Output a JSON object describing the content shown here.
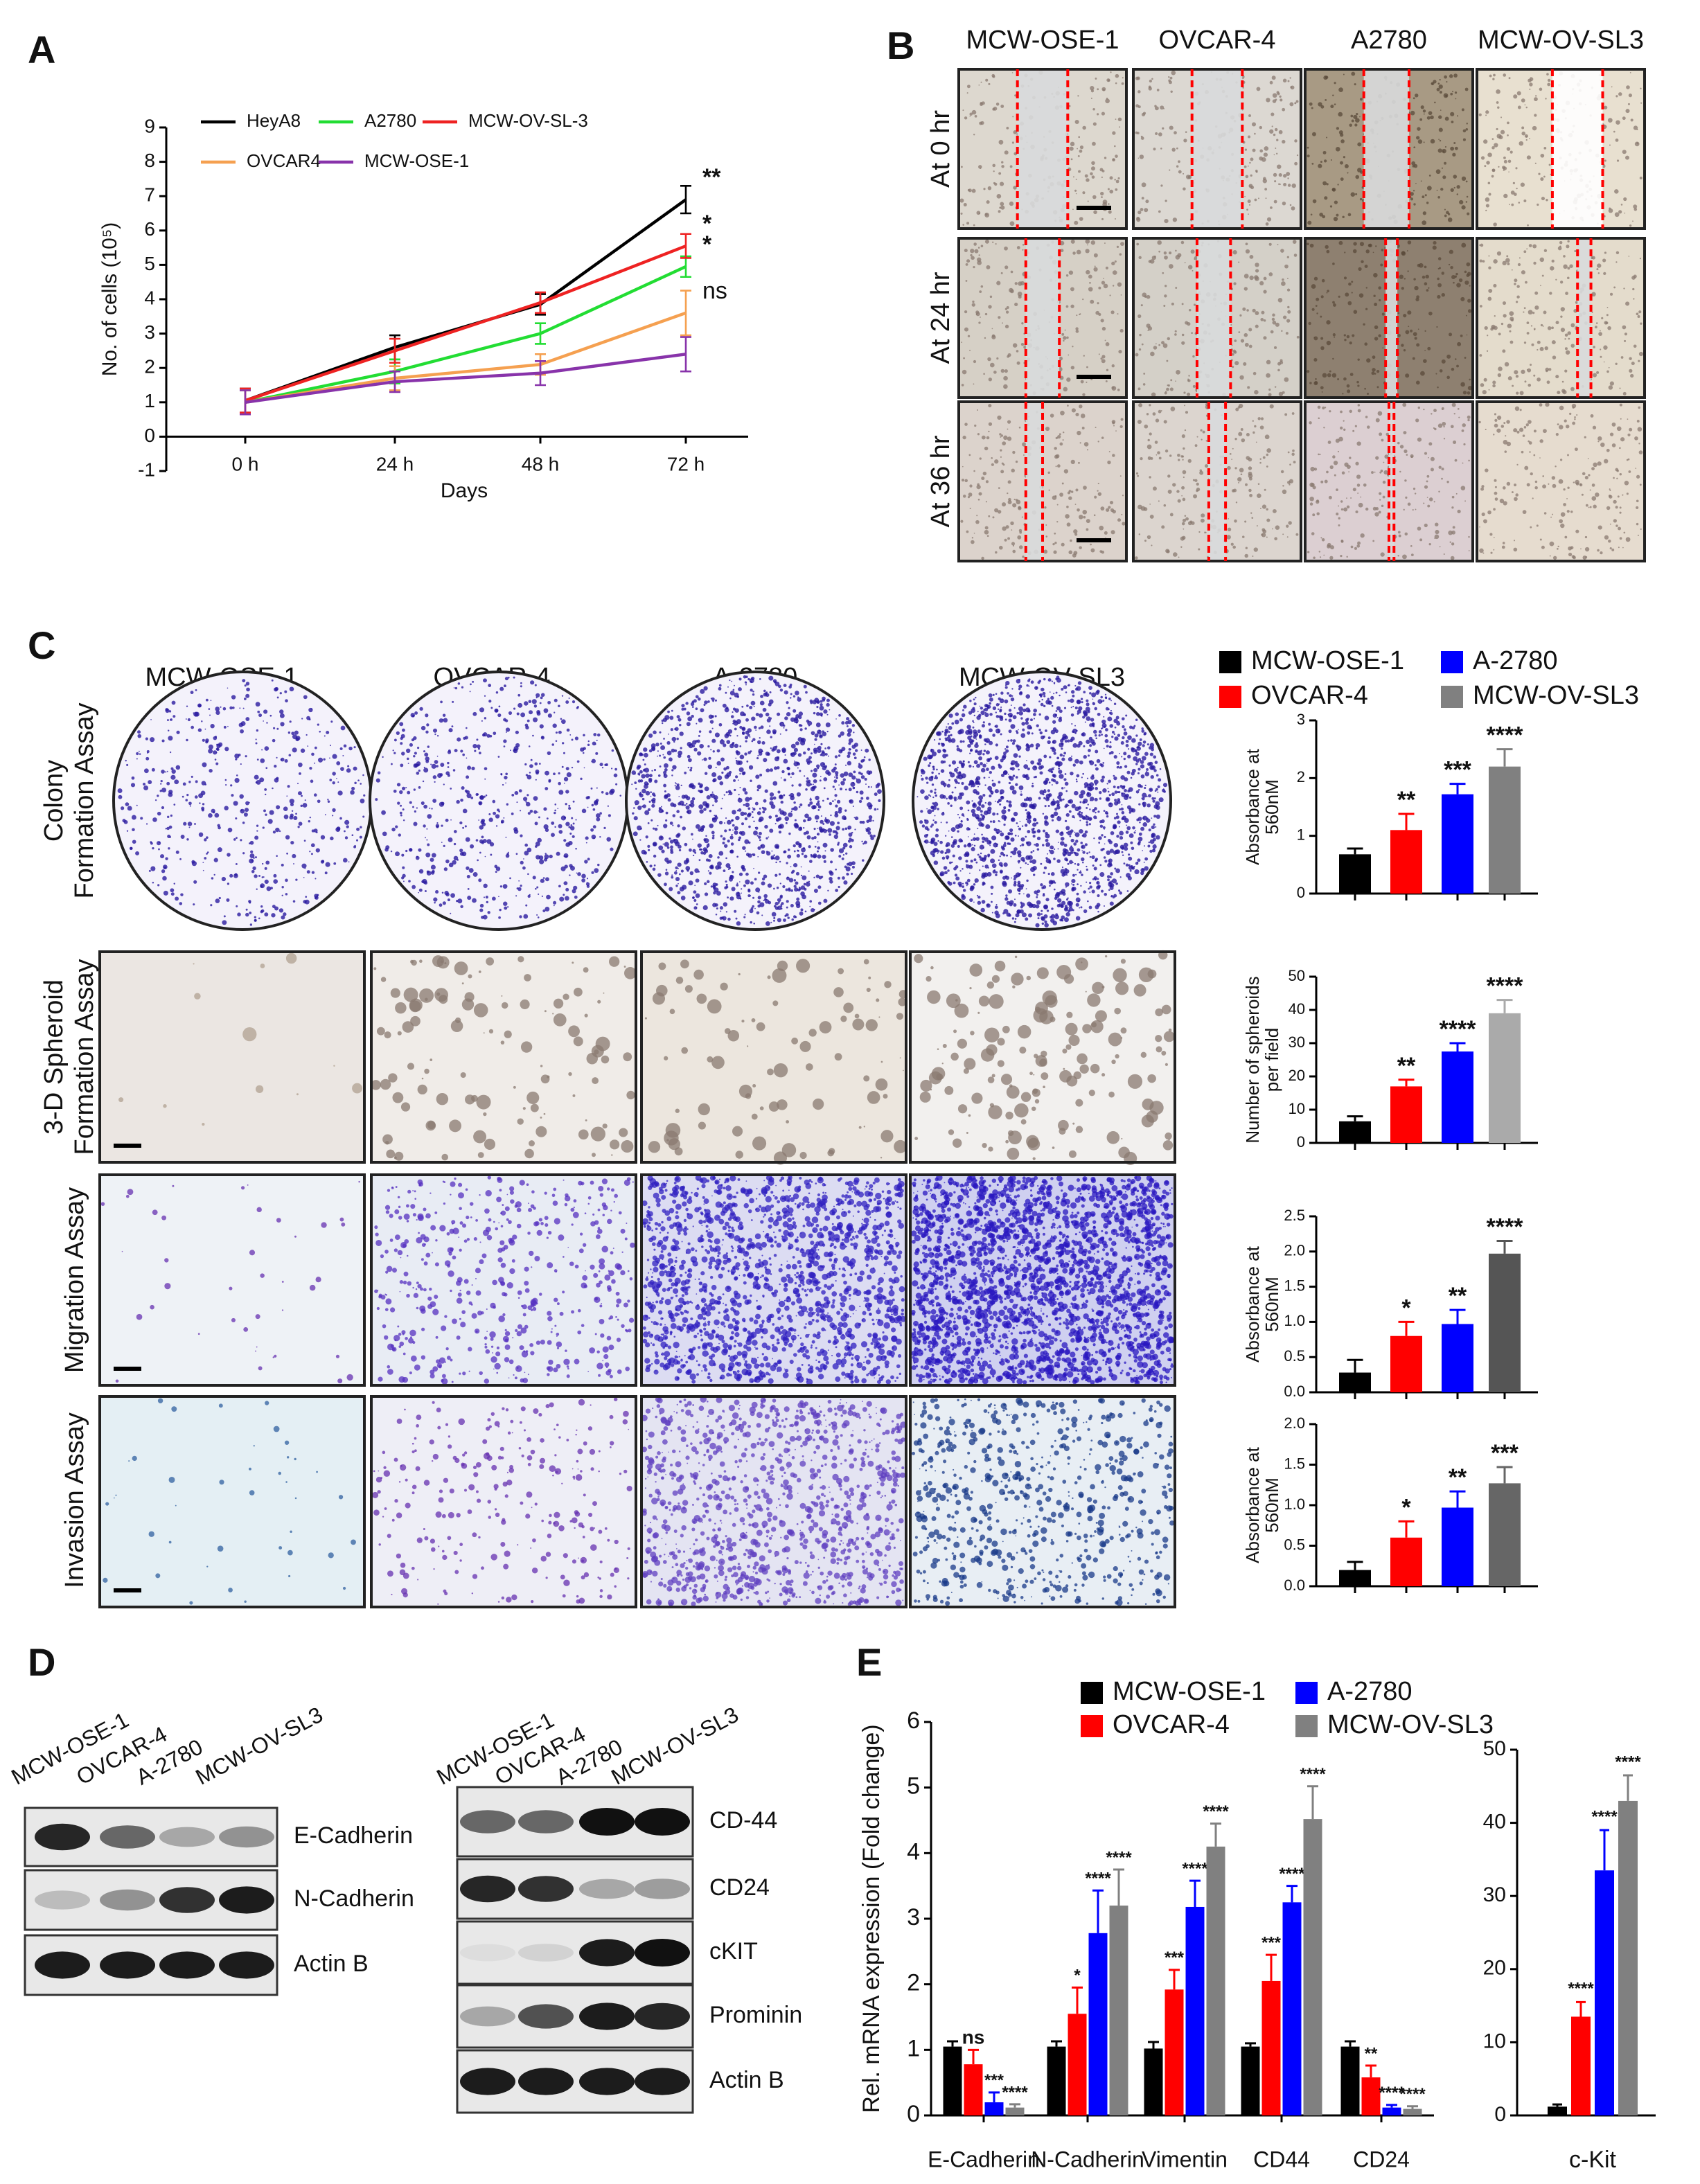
{
  "panels": [
    "A",
    "B",
    "C",
    "D",
    "E"
  ],
  "panel_b": {
    "columns": [
      "MCW-OSE-1",
      "OVCAR-4",
      "A2780",
      "MCW-OV-SL3"
    ],
    "rows": [
      "At 0 hr",
      "At 24 hr",
      "At 36 hr"
    ]
  },
  "panel_c": {
    "columns": [
      "MCW-OSE-1",
      "OVCAR-4",
      "A-2780",
      "MCW-OV-SL3"
    ],
    "rows": [
      [
        "Colony",
        "Formation Assay"
      ],
      [
        "3-D Spheroid",
        "Formation Assay"
      ],
      [
        "Migration Assay"
      ],
      [
        "Invasion Assay"
      ]
    ]
  },
  "panel_d": {
    "left": {
      "lanes": [
        "MCW-OSE-1",
        "OVCAR-4",
        "A-2780",
        "MCW-OV-SL3"
      ],
      "bands": [
        "E-Cadherin",
        "N-Cadherin",
        "Actin B"
      ]
    },
    "right": {
      "lanes": [
        "MCW-OSE-1",
        "OVCAR-4",
        "A-2780",
        "MCW-OV-SL3"
      ],
      "bands": [
        "CD-44",
        "CD24",
        "cKIT",
        "Prominin",
        "Actin B"
      ]
    }
  },
  "chart_data": [
    {
      "type": "line",
      "xlabel": "Days",
      "ylabel": "No. of cells (10⁵)",
      "categories": [
        "0 h",
        "24 h",
        "48 h",
        "72 h"
      ],
      "ylim": [
        -1,
        9
      ],
      "yticks": [
        -1,
        0,
        1,
        2,
        3,
        4,
        5,
        6,
        7,
        8,
        9
      ],
      "series": [
        {
          "name": "HeyA8",
          "color": "#000000",
          "values": [
            1.05,
            2.6,
            3.85,
            6.9
          ],
          "errors": [
            0.35,
            0.35,
            0.3,
            0.4
          ],
          "annotation": "**"
        },
        {
          "name": "A2780",
          "color": "#22dd33",
          "values": [
            1.0,
            1.9,
            3.0,
            4.95
          ],
          "errors": [
            0.35,
            0.35,
            0.3,
            0.3
          ],
          "annotation": "*"
        },
        {
          "name": "MCW-OV-SL-3",
          "color": "#ee2222",
          "values": [
            1.05,
            2.5,
            3.9,
            5.55
          ],
          "errors": [
            0.35,
            0.35,
            0.3,
            0.35
          ],
          "annotation": "*"
        },
        {
          "name": "OVCAR4",
          "color": "#f5a050",
          "values": [
            1.0,
            1.7,
            2.1,
            3.6
          ],
          "errors": [
            0.35,
            0.35,
            0.3,
            0.65
          ],
          "annotation": "ns"
        },
        {
          "name": "MCW-OSE-1",
          "color": "#8833aa",
          "values": [
            1.0,
            1.6,
            1.85,
            2.4
          ],
          "errors": [
            0.35,
            0.3,
            0.35,
            0.5
          ]
        }
      ]
    },
    {
      "type": "bar",
      "ylabel": [
        "Absorbance at",
        "560nM"
      ],
      "legend": [
        "MCW-OSE-1",
        "OVCAR-4",
        "A-2780",
        "MCW-OV-SL3"
      ],
      "colors": [
        "#000000",
        "#ff0000",
        "#0000ff",
        "#808080"
      ],
      "values": [
        0.68,
        1.1,
        1.72,
        2.2
      ],
      "errors": [
        0.1,
        0.28,
        0.18,
        0.3
      ],
      "annotations": [
        null,
        "**",
        "***",
        "****"
      ],
      "ylim": [
        0,
        3
      ],
      "yticks": [
        0,
        1,
        2,
        3
      ]
    },
    {
      "type": "bar",
      "ylabel": [
        "Number of spheroids",
        "per field"
      ],
      "colors": [
        "#000000",
        "#ff0000",
        "#0000ff",
        "#aaaaaa"
      ],
      "values": [
        6.5,
        17,
        27.5,
        39
      ],
      "errors": [
        1.5,
        2,
        2.5,
        4
      ],
      "annotations": [
        null,
        "**",
        "****",
        "****"
      ],
      "ylim": [
        0,
        50
      ],
      "yticks": [
        0,
        10,
        20,
        30,
        40,
        50
      ]
    },
    {
      "type": "bar",
      "ylabel": [
        "Absorbance at",
        "560nM"
      ],
      "colors": [
        "#000000",
        "#ff0000",
        "#0000ff",
        "#555555"
      ],
      "values": [
        0.28,
        0.8,
        0.97,
        1.97
      ],
      "errors": [
        0.18,
        0.2,
        0.2,
        0.18
      ],
      "annotations": [
        null,
        "*",
        "**",
        "****"
      ],
      "ylim": [
        0,
        2.5
      ],
      "yticks": [
        {
          "value": 0,
          "label": "0.0"
        },
        0.5,
        {
          "value": 1,
          "label": "1.0"
        },
        1.5,
        {
          "value": 2,
          "label": "2.0"
        },
        2.5
      ]
    },
    {
      "type": "bar",
      "ylabel": [
        "Absorbance at",
        "560nM"
      ],
      "colors": [
        "#000000",
        "#ff0000",
        "#0000ff",
        "#666666"
      ],
      "values": [
        0.2,
        0.6,
        0.97,
        1.27
      ],
      "errors": [
        0.1,
        0.2,
        0.2,
        0.2
      ],
      "annotations": [
        null,
        "*",
        "**",
        "***"
      ],
      "ylim": [
        0,
        2
      ],
      "yticks": [
        {
          "value": 0,
          "label": "0.0"
        },
        0.5,
        {
          "value": 1,
          "label": "1.0"
        },
        1.5,
        {
          "value": 2,
          "label": "2.0"
        }
      ]
    },
    {
      "type": "grouped_bar",
      "ylabel": "Rel. mRNA expression (Fold change)",
      "categories": [
        "E-Cadherin",
        "N-Cadherin",
        "Vimentin",
        "CD44",
        "CD24"
      ],
      "ylim": [
        0,
        6
      ],
      "yticks": [
        0,
        1,
        2,
        3,
        4,
        5,
        6
      ],
      "series": [
        {
          "name": "MCW-OSE-1",
          "color": "#000000",
          "values": [
            1.05,
            1.05,
            1.02,
            1.05,
            1.05
          ],
          "errors": [
            0.08,
            0.08,
            0.1,
            0.05,
            0.08
          ],
          "annotations": [
            null,
            null,
            null,
            null,
            null
          ]
        },
        {
          "name": "OVCAR-4",
          "color": "#ff0000",
          "values": [
            0.78,
            1.55,
            1.92,
            2.05,
            0.58
          ],
          "errors": [
            0.22,
            0.4,
            0.3,
            0.4,
            0.18
          ],
          "annotations": [
            "ns",
            "*",
            "***",
            "***",
            "**"
          ]
        },
        {
          "name": "A-2780",
          "color": "#0000ff",
          "values": [
            0.2,
            2.78,
            3.18,
            3.25,
            0.12
          ],
          "errors": [
            0.15,
            0.65,
            0.4,
            0.25,
            0.04
          ],
          "annotations": [
            "***",
            "****",
            "****",
            "****",
            "****"
          ]
        },
        {
          "name": "MCW-OV-SL3",
          "color": "#808080",
          "values": [
            0.12,
            3.2,
            4.1,
            4.52,
            0.1
          ],
          "errors": [
            0.05,
            0.55,
            0.35,
            0.5,
            0.04
          ],
          "annotations": [
            "****",
            "****",
            "****",
            "****",
            "****"
          ]
        }
      ]
    },
    {
      "type": "bar",
      "xlabel": "c-Kit",
      "colors": [
        "#000000",
        "#ff0000",
        "#0000ff",
        "#808080"
      ],
      "values": [
        1.2,
        13.5,
        33.5,
        43
      ],
      "errors": [
        0.3,
        2,
        5.5,
        3.5
      ],
      "annotations": [
        null,
        "****",
        "****",
        "****"
      ],
      "ylim": [
        0,
        50
      ],
      "yticks": [
        0,
        10,
        20,
        30,
        40,
        50
      ]
    }
  ]
}
